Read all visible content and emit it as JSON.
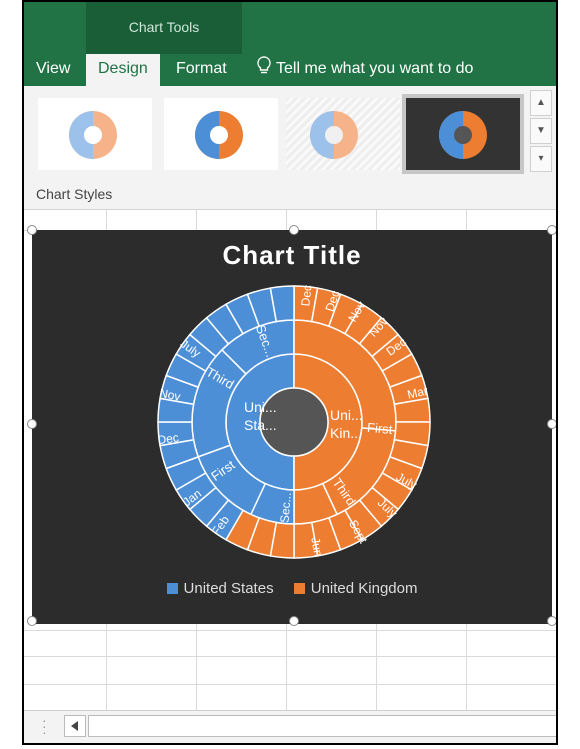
{
  "ribbon": {
    "context_group": "Chart Tools",
    "tabs": [
      {
        "label": "View"
      },
      {
        "label": "Design"
      },
      {
        "label": "Format"
      }
    ],
    "tell_me": "Tell me what you want to do",
    "gallery_label": "Chart Styles",
    "colors": {
      "ribbon_green": "#217346",
      "context_green": "#1a5e38"
    }
  },
  "chart": {
    "title": "Chart Title",
    "legend": [
      {
        "label": "United States",
        "color": "#4d8fd6"
      },
      {
        "label": "United Kingdom",
        "color": "#ed7d31"
      }
    ],
    "background": "#2c2c2c"
  },
  "chart_data": {
    "type": "sunburst",
    "title": "Chart Title",
    "series": [
      {
        "name": "United States",
        "inner_label": "Uni... Sta...",
        "quarters": [
          "Sec...",
          "Third",
          "First"
        ],
        "months_labeled": [
          "July",
          "Nov",
          "Dec",
          "Jan",
          "Feb"
        ]
      },
      {
        "name": "United Kingdom",
        "inner_label": "Uni... Kin...",
        "quarters": [
          "First",
          "Third",
          "Sec..."
        ],
        "months_labeled": [
          "Dec",
          "Dec",
          "Nov",
          "Nov",
          "Dec",
          "Mar",
          "July",
          "July",
          "Sept",
          "Jun"
        ]
      }
    ]
  }
}
